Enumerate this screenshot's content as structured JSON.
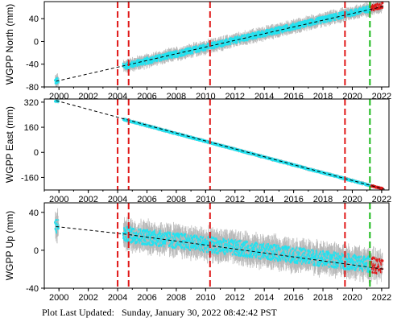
{
  "footer": {
    "label": "Plot Last Updated:",
    "timestamp": "Sunday, January 30, 2022 08:42:42 PST"
  },
  "colors": {
    "data_points": "#22e2f0",
    "error_bars": "#b8b8b8",
    "trend_line": "#000000",
    "equipment_change": "#e01818",
    "other_event": "#18b818",
    "recent_points": "#e01818"
  },
  "chart_data": [
    {
      "type": "scatter",
      "panel": "north",
      "ylabel": "WGPP North (mm)",
      "xlim": [
        1999.0,
        2022.5
      ],
      "ylim": [
        -80,
        70
      ],
      "x_ticks": [
        2000,
        2002,
        2004,
        2006,
        2008,
        2010,
        2012,
        2014,
        2016,
        2018,
        2020,
        2022
      ],
      "y_ticks": [
        -80,
        -40,
        0,
        40
      ],
      "grid": false,
      "trend": [
        {
          "x": 1999.8,
          "y": -70
        },
        {
          "x": 2022.2,
          "y": 62
        }
      ],
      "data_segments": [
        {
          "x_start": 1999.75,
          "x_end": 1999.95,
          "y_start": -70,
          "y_end": -69
        },
        {
          "x_start": 2004.4,
          "x_end": 2021.3,
          "y_start": -44,
          "y_end": 58
        }
      ],
      "recent_segment": {
        "x_start": 2021.3,
        "x_end": 2022.05,
        "y_start": 58,
        "y_end": 63
      },
      "red_event_lines": [
        2004.0,
        2004.75,
        2010.3,
        2019.5
      ],
      "green_event_lines": [
        2021.2
      ]
    },
    {
      "type": "scatter",
      "panel": "east",
      "ylabel": "WGPP East (mm)",
      "xlim": [
        1999.0,
        2022.5
      ],
      "ylim": [
        -240,
        340
      ],
      "x_ticks": [
        2000,
        2002,
        2004,
        2006,
        2008,
        2010,
        2012,
        2014,
        2016,
        2018,
        2020,
        2022
      ],
      "y_ticks": [
        -160,
        0,
        160,
        320
      ],
      "grid": false,
      "trend": [
        {
          "x": 1999.8,
          "y": 330
        },
        {
          "x": 2022.2,
          "y": -235
        }
      ],
      "data_segments": [
        {
          "x_start": 1999.75,
          "x_end": 1999.95,
          "y_start": 328,
          "y_end": 325
        },
        {
          "x_start": 2004.4,
          "x_end": 2021.3,
          "y_start": 210,
          "y_end": -213
        }
      ],
      "recent_segment": {
        "x_start": 2021.3,
        "x_end": 2022.05,
        "y_start": -213,
        "y_end": -232
      },
      "red_event_lines": [
        2004.0,
        2004.75,
        2010.3,
        2019.5
      ],
      "green_event_lines": [
        2021.2
      ]
    },
    {
      "type": "scatter",
      "panel": "up",
      "ylabel": "WGPP Up (mm)",
      "xlim": [
        1999.0,
        2022.5
      ],
      "ylim": [
        -40,
        50
      ],
      "x_ticks": [
        2000,
        2002,
        2004,
        2006,
        2008,
        2010,
        2012,
        2014,
        2016,
        2018,
        2020,
        2022
      ],
      "y_ticks": [
        -40,
        0,
        40
      ],
      "grid": false,
      "trend": [
        {
          "x": 1999.8,
          "y": 25
        },
        {
          "x": 2004.5,
          "y": 17
        },
        {
          "x": 2022.2,
          "y": -20
        }
      ],
      "data_segments": [
        {
          "x_start": 1999.75,
          "x_end": 1999.95,
          "y_start": 26,
          "y_end": 25
        },
        {
          "x_start": 2004.4,
          "x_end": 2021.3,
          "y_start": 17,
          "y_end": -15
        }
      ],
      "recent_segment": {
        "x_start": 2021.3,
        "x_end": 2022.05,
        "y_start": -15,
        "y_end": -18
      },
      "red_event_lines": [
        2004.0,
        2004.75,
        2010.3,
        2019.5
      ],
      "green_event_lines": [
        2021.2
      ]
    }
  ]
}
